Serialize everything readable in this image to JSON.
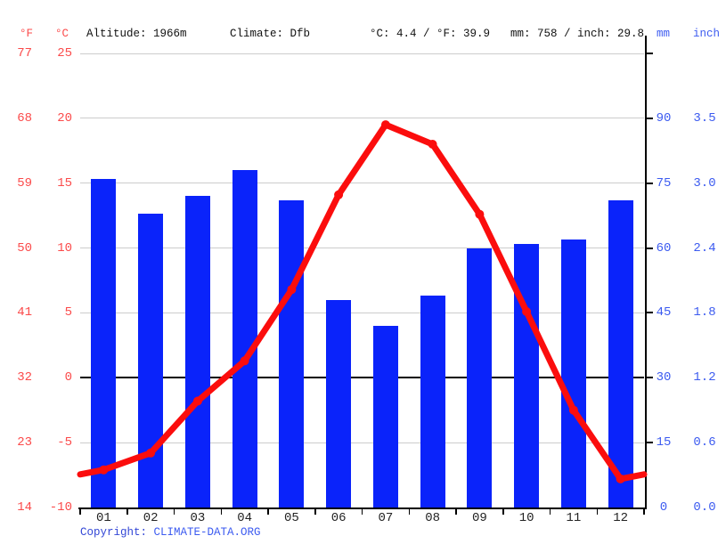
{
  "header": {
    "f_unit": "°F",
    "c_unit": "°C",
    "altitude": "Altitude: 1966m",
    "climate": "Climate: Dfb",
    "temp_summary": "°C: 4.4 / °F: 39.9",
    "precip_summary": "mm: 758 / inch: 29.8",
    "mm_unit": "mm",
    "inch_unit": "inch"
  },
  "footer": {
    "copyright_label": "Copyright:",
    "source_link": "CLIMATE-DATA.ORG"
  },
  "colors": {
    "bar_blue": "#0a23fa",
    "line_red": "#fb0d0d",
    "red_axis_label": "#fb4a4a",
    "blue_axis_label": "#3c5bf0",
    "gridline_gray": "#cccccc",
    "axis_black": "#000000"
  },
  "chart_data": {
    "type": "climograph (monthly precipitation bars + temperature line)",
    "categories": [
      "01",
      "02",
      "03",
      "04",
      "05",
      "06",
      "07",
      "08",
      "09",
      "10",
      "11",
      "12"
    ],
    "series": [
      {
        "name": "precipitation_mm",
        "type": "bar",
        "values": [
          76,
          68,
          72,
          78,
          71,
          48,
          42,
          49,
          60,
          61,
          62,
          71
        ]
      },
      {
        "name": "temperature_c",
        "type": "line",
        "values": [
          -7.1,
          -5.8,
          -1.8,
          1.3,
          6.8,
          14.1,
          19.5,
          18.0,
          12.6,
          5.1,
          -2.5,
          -7.8
        ]
      }
    ],
    "annual_mean_temp_c": 4.4,
    "annual_mean_temp_f": 39.9,
    "annual_precip_mm": 758,
    "annual_precip_inch": 29.8,
    "left_axis_f_ticks": [
      "77",
      "68",
      "59",
      "50",
      "41",
      "32",
      "23",
      "14"
    ],
    "left_axis_c_ticks": [
      "25",
      "20",
      "15",
      "10",
      "5",
      "0",
      "-5",
      "-10"
    ],
    "left_axis_c_values": [
      25,
      20,
      15,
      10,
      5,
      0,
      -5,
      -10
    ],
    "right_axis_mm_ticks": [
      "90",
      "75",
      "60",
      "45",
      "30",
      "15",
      "0"
    ],
    "right_axis_mm_values": [
      90,
      75,
      60,
      45,
      30,
      15,
      0
    ],
    "right_axis_inch_ticks": [
      "3.5",
      "3.0",
      "2.4",
      "1.8",
      "1.2",
      "0.6",
      "0.0"
    ],
    "temp_axis_range_c": [
      -10,
      25
    ],
    "precip_axis_alignment": "0 mm aligns with -10 °C; 15 mm per 5 °C",
    "grid": "horizontal gridlines at 5 °C steps; 0 °C line black",
    "legend": "none"
  }
}
